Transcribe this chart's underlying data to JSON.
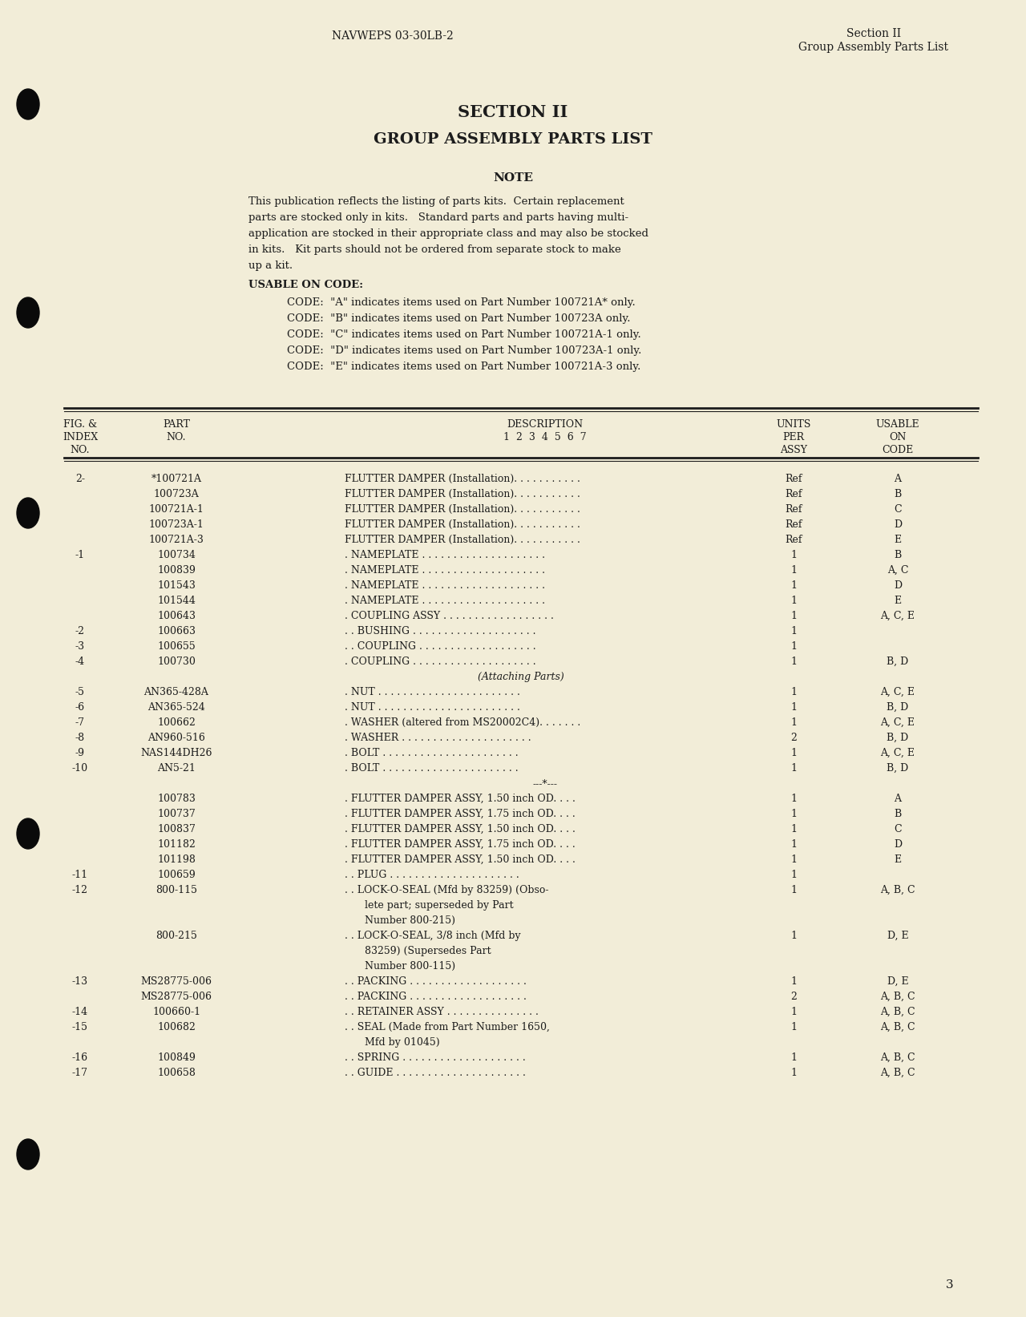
{
  "bg_color": "#f2edd8",
  "page_number": "3",
  "header_left": "NAVWEPS 03-30LB-2",
  "header_right_line1": "Section II",
  "header_right_line2": "Group Assembly Parts List",
  "section_title1": "SECTION II",
  "section_title2": "GROUP ASSEMBLY PARTS LIST",
  "note_title": "NOTE",
  "note_lines": [
    "This publication reflects the listing of parts kits.  Certain replacement",
    "parts are stocked only in kits.   Standard parts and parts having multi-",
    "application are stocked in their appropriate class and may also be stocked",
    "in kits.   Kit parts should not be ordered from separate stock to make",
    "up a kit."
  ],
  "usable_title": "USABLE ON CODE:",
  "codes": [
    "CODE:  \"A\" indicates items used on Part Number 100721A* only.",
    "CODE:  \"B\" indicates items used on Part Number 100723A only.",
    "CODE:  \"C\" indicates items used on Part Number 100721A-1 only.",
    "CODE:  \"D\" indicates items used on Part Number 100723A-1 only.",
    "CODE:  \"E\" indicates items used on Part Number 100721A-3 only."
  ],
  "table_rows": [
    {
      "fig": "2-",
      "part": "*100721A",
      "desc": "FLUTTER DAMPER (Installation). . . . . . . . . . .",
      "units": "Ref",
      "code": "A",
      "extra": []
    },
    {
      "fig": "",
      "part": "100723A",
      "desc": "FLUTTER DAMPER (Installation). . . . . . . . . . .",
      "units": "Ref",
      "code": "B",
      "extra": []
    },
    {
      "fig": "",
      "part": "100721A-1",
      "desc": "FLUTTER DAMPER (Installation). . . . . . . . . . .",
      "units": "Ref",
      "code": "C",
      "extra": []
    },
    {
      "fig": "",
      "part": "100723A-1",
      "desc": "FLUTTER DAMPER (Installation). . . . . . . . . . .",
      "units": "Ref",
      "code": "D",
      "extra": []
    },
    {
      "fig": "",
      "part": "100721A-3",
      "desc": "FLUTTER DAMPER (Installation). . . . . . . . . . .",
      "units": "Ref",
      "code": "E",
      "extra": []
    },
    {
      "fig": "-1",
      "part": "100734",
      "desc": ". NAMEPLATE . . . . . . . . . . . . . . . . . . . .",
      "units": "1",
      "code": "B",
      "extra": []
    },
    {
      "fig": "",
      "part": "100839",
      "desc": ". NAMEPLATE . . . . . . . . . . . . . . . . . . . .",
      "units": "1",
      "code": "A, C",
      "extra": []
    },
    {
      "fig": "",
      "part": "101543",
      "desc": ". NAMEPLATE . . . . . . . . . . . . . . . . . . . .",
      "units": "1",
      "code": "D",
      "extra": []
    },
    {
      "fig": "",
      "part": "101544",
      "desc": ". NAMEPLATE . . . . . . . . . . . . . . . . . . . .",
      "units": "1",
      "code": "E",
      "extra": []
    },
    {
      "fig": "",
      "part": "100643",
      "desc": ". COUPLING ASSY . . . . . . . . . . . . . . . . . .",
      "units": "1",
      "code": "A, C, E",
      "extra": []
    },
    {
      "fig": "-2",
      "part": "100663",
      "desc": ". . BUSHING . . . . . . . . . . . . . . . . . . . .",
      "units": "1",
      "code": "",
      "extra": []
    },
    {
      "fig": "-3",
      "part": "100655",
      "desc": ". . COUPLING . . . . . . . . . . . . . . . . . . .",
      "units": "1",
      "code": "",
      "extra": []
    },
    {
      "fig": "-4",
      "part": "100730",
      "desc": ". COUPLING . . . . . . . . . . . . . . . . . . . .",
      "units": "1",
      "code": "B, D",
      "extra": [
        "(Attaching Parts)"
      ]
    },
    {
      "fig": "-5",
      "part": "AN365-428A",
      "desc": ". NUT . . . . . . . . . . . . . . . . . . . . . . .",
      "units": "1",
      "code": "A, C, E",
      "extra": []
    },
    {
      "fig": "-6",
      "part": "AN365-524",
      "desc": ". NUT . . . . . . . . . . . . . . . . . . . . . . .",
      "units": "1",
      "code": "B, D",
      "extra": []
    },
    {
      "fig": "-7",
      "part": "100662",
      "desc": ". WASHER (altered from MS20002C4). . . . . . .",
      "units": "1",
      "code": "A, C, E",
      "extra": []
    },
    {
      "fig": "-8",
      "part": "AN960-516",
      "desc": ". WASHER . . . . . . . . . . . . . . . . . . . . .",
      "units": "2",
      "code": "B, D",
      "extra": []
    },
    {
      "fig": "-9",
      "part": "NAS144DH26",
      "desc": ". BOLT . . . . . . . . . . . . . . . . . . . . . .",
      "units": "1",
      "code": "A, C, E",
      "extra": []
    },
    {
      "fig": "-10",
      "part": "AN5-21",
      "desc": ". BOLT . . . . . . . . . . . . . . . . . . . . . .",
      "units": "1",
      "code": "B, D",
      "extra": [
        "---*---"
      ]
    },
    {
      "fig": "",
      "part": "100783",
      "desc": ". FLUTTER DAMPER ASSY, 1.50 inch OD. . . .",
      "units": "1",
      "code": "A",
      "extra": []
    },
    {
      "fig": "",
      "part": "100737",
      "desc": ". FLUTTER DAMPER ASSY, 1.75 inch OD. . . .",
      "units": "1",
      "code": "B",
      "extra": []
    },
    {
      "fig": "",
      "part": "100837",
      "desc": ". FLUTTER DAMPER ASSY, 1.50 inch OD. . . .",
      "units": "1",
      "code": "C",
      "extra": []
    },
    {
      "fig": "",
      "part": "101182",
      "desc": ". FLUTTER DAMPER ASSY, 1.75 inch OD. . . .",
      "units": "1",
      "code": "D",
      "extra": []
    },
    {
      "fig": "",
      "part": "101198",
      "desc": ". FLUTTER DAMPER ASSY, 1.50 inch OD. . . .",
      "units": "1",
      "code": "E",
      "extra": []
    },
    {
      "fig": "-11",
      "part": "100659",
      "desc": ". . PLUG . . . . . . . . . . . . . . . . . . . . .",
      "units": "1",
      "code": "",
      "extra": []
    },
    {
      "fig": "-12",
      "part": "800-115",
      "desc": ". . LOCK-O-SEAL (Mfd by 83259) (Obso-",
      "units": "1",
      "code": "A, B, C",
      "extra": [
        "lete part; superseded by Part",
        "Number 800-215)"
      ]
    },
    {
      "fig": "",
      "part": "800-215",
      "desc": ". . LOCK-O-SEAL, 3/8 inch (Mfd by",
      "units": "1",
      "code": "D, E",
      "extra": [
        "83259) (Supersedes Part",
        "Number 800-115)"
      ]
    },
    {
      "fig": "-13",
      "part": "MS28775-006",
      "desc": ". . PACKING . . . . . . . . . . . . . . . . . . .",
      "units": "1",
      "code": "D, E",
      "extra": []
    },
    {
      "fig": "",
      "part": "MS28775-006",
      "desc": ". . PACKING . . . . . . . . . . . . . . . . . . .",
      "units": "2",
      "code": "A, B, C",
      "extra": []
    },
    {
      "fig": "-14",
      "part": "100660-1",
      "desc": ". . RETAINER ASSY . . . . . . . . . . . . . . .",
      "units": "1",
      "code": "A, B, C",
      "extra": []
    },
    {
      "fig": "-15",
      "part": "100682",
      "desc": ". . SEAL (Made from Part Number 1650,",
      "units": "1",
      "code": "A, B, C",
      "extra": [
        "Mfd by 01045)"
      ]
    },
    {
      "fig": "-16",
      "part": "100849",
      "desc": ". . SPRING . . . . . . . . . . . . . . . . . . . .",
      "units": "1",
      "code": "A, B, C",
      "extra": []
    },
    {
      "fig": "-17",
      "part": "100658",
      "desc": ". . GUIDE . . . . . . . . . . . . . . . . . . . . .",
      "units": "1",
      "code": "A, B, C",
      "extra": []
    }
  ]
}
